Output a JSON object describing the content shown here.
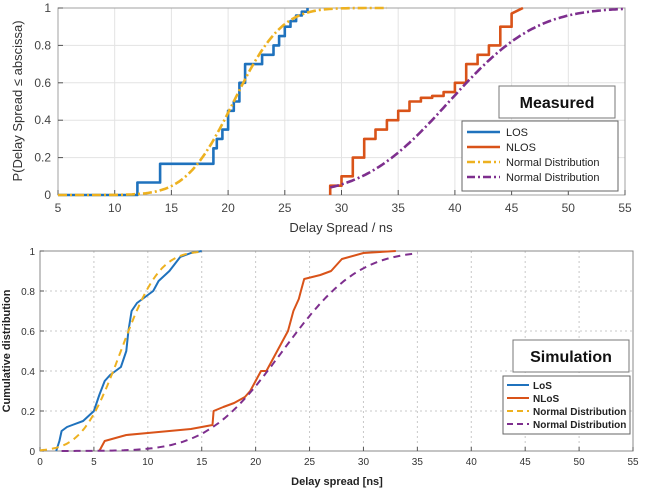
{
  "colors": {
    "los": "#1f72bd",
    "nlos": "#d95319",
    "normal_los": "#edb120",
    "normal_nlos": "#7e2f8e"
  },
  "chart_data": [
    {
      "type": "line",
      "tag": "Measured",
      "xlabel": "Delay Spread / ns",
      "ylabel": "P(Delay Spread ≤ abscissa)",
      "xlim": [
        5,
        55
      ],
      "ylim": [
        0,
        1
      ],
      "xticks": [
        "5",
        "10",
        "15",
        "20",
        "25",
        "30",
        "35",
        "40",
        "45",
        "50",
        "55"
      ],
      "yticks": [
        "0",
        "0.2",
        "0.4",
        "0.6",
        "0.8",
        "1"
      ],
      "legend_labels": [
        "LOS",
        "NLOS",
        "Normal Distribution",
        "Normal Distribution"
      ],
      "series": [
        {
          "name": "LOS",
          "style": "step",
          "x": [
            5,
            12,
            12,
            14,
            14,
            18,
            18.7,
            18.7,
            19,
            19,
            19.5,
            19.5,
            20,
            20,
            20.5,
            20.5,
            21,
            21,
            21.5,
            21.5,
            22,
            22,
            22.5,
            22.5,
            23,
            23,
            24,
            24,
            24.5,
            24.5,
            25,
            25,
            25.5,
            25.5,
            26,
            26,
            26.5,
            26.5,
            27,
            27
          ],
          "y": [
            0,
            0,
            0.067,
            0.067,
            0.167,
            0.167,
            0.167,
            0.25,
            0.25,
            0.3,
            0.3,
            0.35,
            0.35,
            0.45,
            0.45,
            0.5,
            0.5,
            0.6,
            0.6,
            0.7,
            0.7,
            0.7,
            0.7,
            0.7,
            0.7,
            0.75,
            0.75,
            0.8,
            0.8,
            0.85,
            0.85,
            0.9,
            0.9,
            0.93,
            0.93,
            0.96,
            0.96,
            0.98,
            0.98,
            1
          ]
        },
        {
          "name": "NLOS",
          "style": "step",
          "x": [
            29,
            29,
            30,
            30,
            31,
            31,
            32,
            32,
            33,
            33,
            34,
            34,
            35,
            35,
            36,
            36,
            37,
            37,
            38,
            38,
            39,
            39,
            40,
            40,
            41,
            41,
            42,
            42,
            43,
            43,
            44,
            44,
            45,
            45,
            46
          ],
          "y": [
            0,
            0.05,
            0.05,
            0.1,
            0.1,
            0.2,
            0.2,
            0.3,
            0.3,
            0.35,
            0.35,
            0.4,
            0.4,
            0.45,
            0.45,
            0.5,
            0.5,
            0.52,
            0.52,
            0.53,
            0.53,
            0.55,
            0.55,
            0.6,
            0.6,
            0.7,
            0.7,
            0.75,
            0.75,
            0.8,
            0.8,
            0.9,
            0.9,
            0.97,
            1
          ]
        },
        {
          "name": "Normal Distribution",
          "style": "dashdot",
          "mean": 20.5,
          "sd": 3.3,
          "xrange": [
            5,
            34
          ]
        },
        {
          "name": "Normal Distribution",
          "style": "dashdot",
          "mean": 39.5,
          "sd": 6.0,
          "xrange": [
            29,
            55
          ]
        }
      ]
    },
    {
      "type": "line",
      "tag": "Simulation",
      "xlabel": "Delay spread [ns]",
      "ylabel": "Cumulative distribution",
      "xlim": [
        0,
        55
      ],
      "ylim": [
        0,
        1
      ],
      "xticks": [
        "0",
        "5",
        "10",
        "15",
        "20",
        "25",
        "30",
        "35",
        "40",
        "45",
        "50",
        "55"
      ],
      "yticks": [
        "0",
        "0.2",
        "0.4",
        "0.6",
        "0.8",
        "1"
      ],
      "legend_labels": [
        "LoS",
        "NLoS",
        "Normal Distribution",
        "Normal Distribution"
      ],
      "series": [
        {
          "name": "LoS",
          "style": "solid",
          "x": [
            1.5,
            1.8,
            2,
            2.5,
            3,
            4,
            5,
            5.5,
            6,
            6.5,
            7,
            7.5,
            8,
            8.2,
            8.5,
            9,
            9.5,
            10,
            10.5,
            11,
            12,
            13,
            14,
            15
          ],
          "y": [
            0,
            0.05,
            0.1,
            0.12,
            0.13,
            0.15,
            0.2,
            0.28,
            0.35,
            0.38,
            0.4,
            0.42,
            0.5,
            0.6,
            0.7,
            0.74,
            0.76,
            0.78,
            0.8,
            0.85,
            0.9,
            0.97,
            0.99,
            1
          ]
        },
        {
          "name": "NLoS",
          "style": "solid",
          "x": [
            5.5,
            6,
            8,
            10,
            12,
            14,
            16,
            16.1,
            17,
            18,
            19,
            19.5,
            20,
            20.5,
            21,
            21.5,
            22,
            23,
            23.5,
            24,
            24.2,
            24.5,
            26,
            27,
            28,
            30,
            33
          ],
          "y": [
            0,
            0.05,
            0.08,
            0.09,
            0.1,
            0.11,
            0.13,
            0.2,
            0.22,
            0.24,
            0.27,
            0.3,
            0.35,
            0.4,
            0.4,
            0.45,
            0.5,
            0.6,
            0.7,
            0.76,
            0.8,
            0.86,
            0.88,
            0.9,
            0.96,
            0.99,
            1
          ]
        },
        {
          "name": "Normal Distribution",
          "style": "dashed",
          "mean": 7.5,
          "sd": 2.8,
          "xrange": [
            0,
            15
          ]
        },
        {
          "name": "Normal Distribution",
          "style": "dashed",
          "mean": 22.5,
          "sd": 5.5,
          "xrange": [
            2,
            35
          ]
        }
      ]
    }
  ]
}
